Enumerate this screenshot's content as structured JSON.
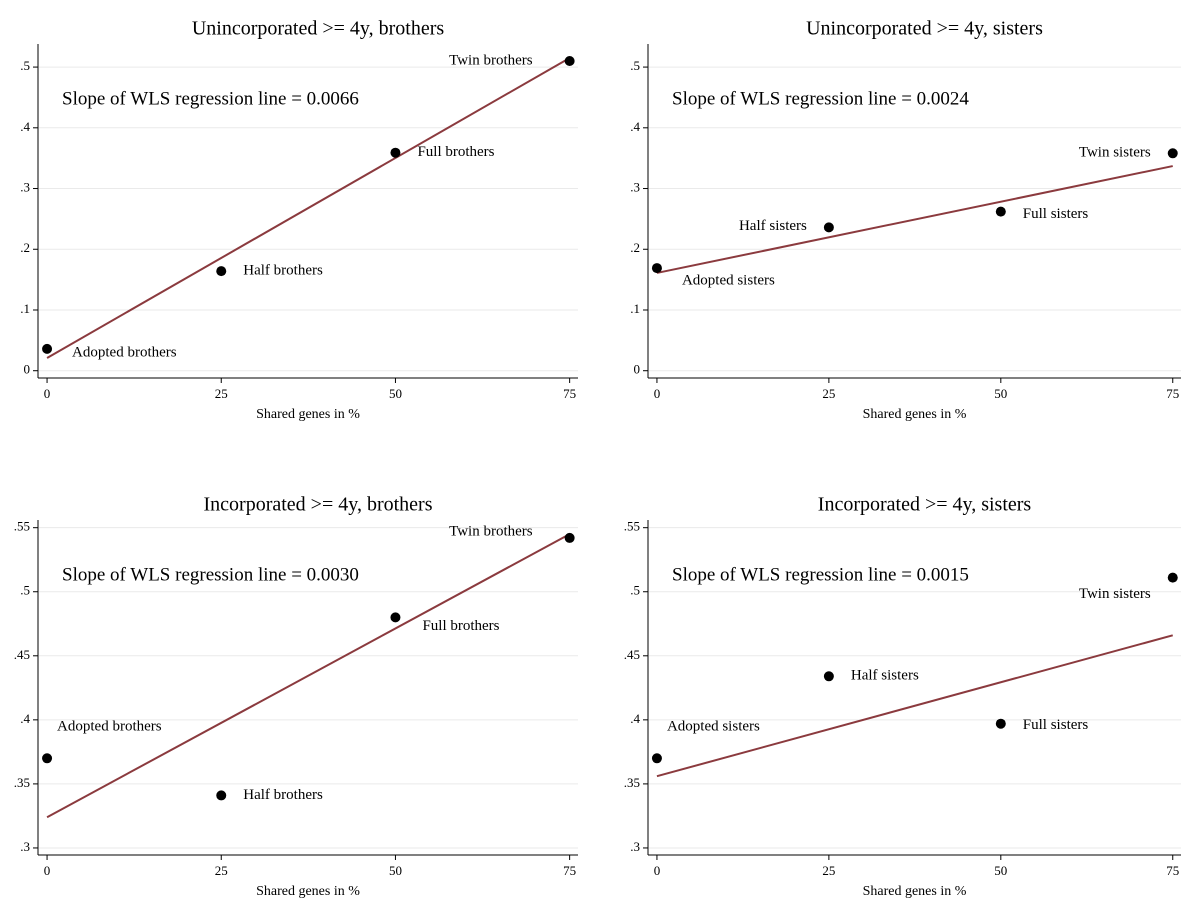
{
  "chart_data": [
    {
      "type": "scatter",
      "title": "Unincorporated >= 4y, brothers",
      "annotation": "Slope of WLS regression line = 0.0066",
      "xlabel": "Shared genes in %",
      "x": [
        0,
        25,
        50,
        75
      ],
      "values": [
        0.036,
        0.164,
        0.359,
        0.51
      ],
      "point_labels": [
        "Adopted brothers",
        "Half brothers",
        "Full brothers",
        "Twin brothers"
      ],
      "color": "#000000",
      "fit_line": {
        "x": [
          0,
          75
        ],
        "values": [
          0.021,
          0.515
        ],
        "color": "#8b3a3e"
      },
      "xlim": [
        -1.3,
        76.2
      ],
      "ylim": [
        -0.012,
        0.538
      ],
      "xticks": [
        0,
        25,
        50,
        75
      ],
      "yticks": [
        0,
        {
          "value": 0.1,
          "label": ".1"
        },
        {
          "value": 0.2,
          "label": ".2"
        },
        {
          "value": 0.3,
          "label": ".3"
        },
        {
          "value": 0.4,
          "label": ".4"
        },
        {
          "value": 0.5,
          "label": ".5"
        }
      ],
      "grid": true
    },
    {
      "type": "scatter",
      "title": "Unincorporated >= 4y, sisters",
      "annotation": "Slope of WLS regression line = 0.0024",
      "xlabel": "Shared genes in %",
      "x": [
        0,
        25,
        50,
        75
      ],
      "values": [
        0.169,
        0.236,
        0.262,
        0.358
      ],
      "point_labels": [
        "Adopted sisters",
        "Half sisters",
        "Full sisters",
        "Twin sisters"
      ],
      "color": "#000000",
      "fit_line": {
        "x": [
          0,
          75
        ],
        "values": [
          0.161,
          0.337
        ],
        "color": "#8b3a3e"
      },
      "xlim": [
        -1.3,
        76.2
      ],
      "ylim": [
        -0.012,
        0.538
      ],
      "xticks": [
        0,
        25,
        50,
        75
      ],
      "yticks": [
        0,
        {
          "value": 0.1,
          "label": ".1"
        },
        {
          "value": 0.2,
          "label": ".2"
        },
        {
          "value": 0.3,
          "label": ".3"
        },
        {
          "value": 0.4,
          "label": ".4"
        },
        {
          "value": 0.5,
          "label": ".5"
        }
      ],
      "grid": true
    },
    {
      "type": "scatter",
      "title": "Incorporated >= 4y, brothers",
      "annotation": "Slope of WLS regression line = 0.0030",
      "xlabel": "Shared genes in %",
      "x": [
        0,
        25,
        50,
        75
      ],
      "values": [
        0.37,
        0.341,
        0.48,
        0.542
      ],
      "point_labels": [
        "Adopted brothers",
        "Half brothers",
        "Full brothers",
        "Twin brothers"
      ],
      "color": "#000000",
      "fit_line": {
        "x": [
          0,
          75
        ],
        "values": [
          0.324,
          0.545
        ],
        "color": "#8b3a3e"
      },
      "xlim": [
        -1.3,
        76.2
      ],
      "ylim": [
        0.2945,
        0.556
      ],
      "xticks": [
        0,
        25,
        50,
        75
      ],
      "yticks": [
        {
          "value": 0.3,
          "label": ".3"
        },
        {
          "value": 0.35,
          "label": ".35"
        },
        {
          "value": 0.4,
          "label": ".4"
        },
        {
          "value": 0.45,
          "label": ".45"
        },
        {
          "value": 0.5,
          "label": ".5"
        },
        {
          "value": 0.55,
          "label": ".55"
        }
      ],
      "grid": true
    },
    {
      "type": "scatter",
      "title": "Incorporated >= 4y, sisters",
      "annotation": "Slope of WLS regression line = 0.0015",
      "xlabel": "Shared genes in %",
      "x": [
        0,
        25,
        50,
        75
      ],
      "values": [
        0.37,
        0.434,
        0.397,
        0.511
      ],
      "point_labels": [
        "Adopted sisters",
        "Half sisters",
        "Full sisters",
        "Twin sisters"
      ],
      "color": "#000000",
      "fit_line": {
        "x": [
          0,
          75
        ],
        "values": [
          0.356,
          0.466
        ],
        "color": "#8b3a3e"
      },
      "xlim": [
        -1.3,
        76.2
      ],
      "ylim": [
        0.2945,
        0.556
      ],
      "xticks": [
        0,
        25,
        50,
        75
      ],
      "yticks": [
        {
          "value": 0.3,
          "label": ".3"
        },
        {
          "value": 0.35,
          "label": ".35"
        },
        {
          "value": 0.4,
          "label": ".4"
        },
        {
          "value": 0.45,
          "label": ".45"
        },
        {
          "value": 0.5,
          "label": ".5"
        },
        {
          "value": 0.55,
          "label": ".55"
        }
      ],
      "grid": true
    }
  ]
}
